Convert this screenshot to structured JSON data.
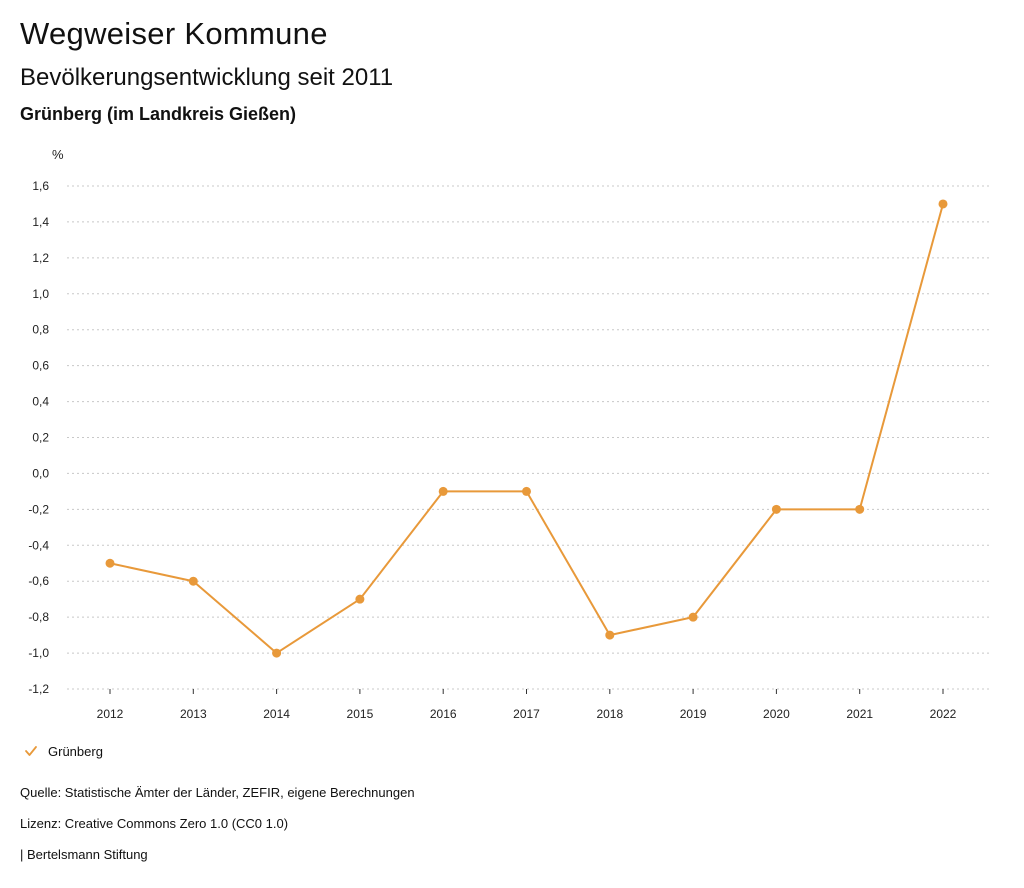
{
  "header": {
    "title": "Wegweiser Kommune",
    "subtitle": "Bevölkerungsentwicklung seit 2011",
    "place": "Grünberg (im Landkreis Gießen)"
  },
  "footer": {
    "source": "Quelle: Statistische Ämter der Länder, ZEFIR, eigene Berechnungen",
    "license": "Lizenz: Creative Commons Zero 1.0 (CC0 1.0)",
    "brand": "| Bertelsmann Stiftung"
  },
  "legend": {
    "label": "Grünberg",
    "icon": "check-icon"
  },
  "colors": {
    "series": "#E8993A",
    "grid": "#c8c8c8",
    "axis": "#222222"
  },
  "chart_data": {
    "type": "line",
    "title": "Bevölkerungsentwicklung seit 2011",
    "subtitle": "Grünberg (im Landkreis Gießen)",
    "xlabel": "",
    "ylabel": "%",
    "categories": [
      "2012",
      "2013",
      "2014",
      "2015",
      "2016",
      "2017",
      "2018",
      "2019",
      "2020",
      "2021",
      "2022"
    ],
    "series": [
      {
        "name": "Grünberg",
        "values": [
          -0.5,
          -0.6,
          -1.0,
          -0.7,
          -0.1,
          -0.1,
          -0.9,
          -0.8,
          -0.2,
          -0.2,
          1.5
        ]
      }
    ],
    "yticks": [
      1.6,
      1.4,
      1.2,
      1.0,
      0.8,
      0.6,
      0.4,
      0.2,
      0.0,
      -0.2,
      -0.4,
      -0.6,
      -0.8,
      -1.0,
      -1.2
    ],
    "ytick_labels": [
      "1,6",
      "1,4",
      "1,2",
      "1,0",
      "0,8",
      "0,6",
      "0,4",
      "0,2",
      "0,0",
      "-0,2",
      "-0,4",
      "-0,6",
      "-0,8",
      "-1,0",
      "-1,2"
    ],
    "ylim": [
      -1.2,
      1.6
    ],
    "grid": true,
    "legend_position": "bottom-left"
  }
}
